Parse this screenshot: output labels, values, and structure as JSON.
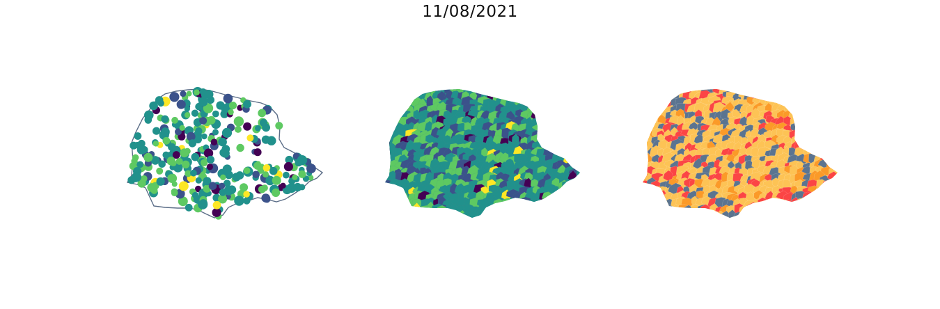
{
  "title": "11/08/2021",
  "panels": [
    {
      "id": "points",
      "kind": "point-map",
      "outline_color": "#5b6d87"
    },
    {
      "id": "choropleth",
      "kind": "choropleth",
      "edge_color": "#4a8a8a"
    },
    {
      "id": "classes",
      "kind": "categorical-map"
    }
  ],
  "colors": {
    "viridis": [
      "#440154",
      "#3b528b",
      "#21918c",
      "#5ec962",
      "#fde725"
    ],
    "classes": [
      "#5b7490",
      "#fdc355",
      "#fb4545",
      "#fb9a28"
    ]
  }
}
